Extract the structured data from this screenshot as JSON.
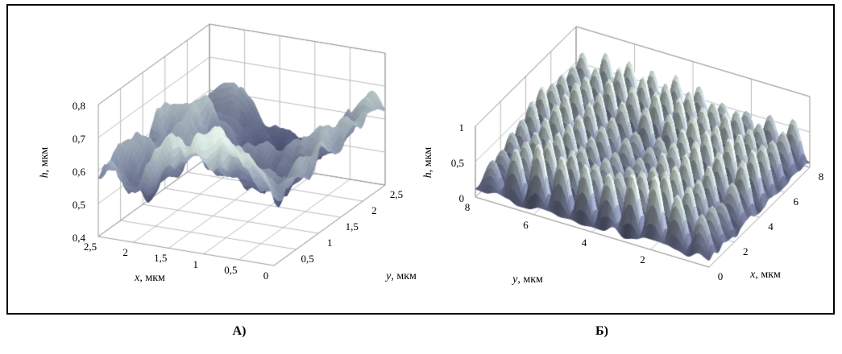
{
  "figure": {
    "panel_labels": [
      "А)",
      "Б)"
    ],
    "frame_border_color": "#000000",
    "background_color": "#ffffff"
  },
  "chart_data": [
    {
      "type": "surface",
      "panel_label": "А)",
      "axes": {
        "bottom_left": {
          "var": "x",
          "unit": ", мкм",
          "range": [
            0,
            2.5
          ],
          "ticks": [
            {
              "f": 1,
              "label": "2,5"
            },
            {
              "f": 0.8,
              "label": "2"
            },
            {
              "f": 0.6,
              "label": "1,5"
            },
            {
              "f": 0.4,
              "label": "1"
            },
            {
              "f": 0.2,
              "label": "0,5"
            },
            {
              "f": 0,
              "label": "0"
            }
          ]
        },
        "bottom_right": {
          "var": "y",
          "unit": ", мкм",
          "range": [
            0,
            2.5
          ],
          "ticks": [
            {
              "f": 0.2,
              "label": "0,5"
            },
            {
              "f": 0.4,
              "label": "1"
            },
            {
              "f": 0.6,
              "label": "1,5"
            },
            {
              "f": 0.8,
              "label": "2"
            },
            {
              "f": 1,
              "label": "2,5"
            }
          ]
        },
        "vertical": {
          "var": "h",
          "unit": ", мкм",
          "range": [
            0.4,
            0.8
          ],
          "ticks": [
            {
              "f": 0,
              "label": "0,4"
            },
            {
              "f": 0.25,
              "label": "0,5"
            },
            {
              "f": 0.5,
              "label": "0,6"
            },
            {
              "f": 0.75,
              "label": "0,7"
            },
            {
              "f": 1,
              "label": "0,8"
            }
          ]
        }
      },
      "surface": {
        "kind": "fbm",
        "seed": 11,
        "octaves": 5,
        "base_freq": 2.4,
        "fine_amp": 0.12,
        "grid_n": 72,
        "z_lo": 0.03,
        "z_hi": 0.98
      },
      "colormap": [
        "#32354a",
        "#565c7c",
        "#8c97ab",
        "#c2d1cd",
        "#e9f3ec"
      ],
      "grid_color": "#bababa",
      "box_color": "#9a9a9a"
    },
    {
      "type": "surface",
      "panel_label": "Б)",
      "axes": {
        "bottom_left": {
          "var": "y",
          "unit": ", мкм",
          "range": [
            0,
            8
          ],
          "ticks": [
            {
              "f": 1,
              "label": "8"
            },
            {
              "f": 0.75,
              "label": "6"
            },
            {
              "f": 0.5,
              "label": "4"
            },
            {
              "f": 0.25,
              "label": "2"
            }
          ]
        },
        "bottom_right": {
          "var": "x",
          "unit": ", мкм",
          "range": [
            0,
            8
          ],
          "ticks": [
            {
              "f": 0,
              "label": "0"
            },
            {
              "f": 0.25,
              "label": "2"
            },
            {
              "f": 0.5,
              "label": "4"
            },
            {
              "f": 0.75,
              "label": "6"
            },
            {
              "f": 1,
              "label": "8"
            }
          ]
        },
        "vertical": {
          "var": "h",
          "unit": ", мкм",
          "range": [
            0,
            1
          ],
          "ticks": [
            {
              "f": 0,
              "label": "0"
            },
            {
              "f": 0.5,
              "label": "0,5"
            },
            {
              "f": 1,
              "label": "1"
            }
          ]
        }
      },
      "surface": {
        "kind": "bumps",
        "seed": 23,
        "bump_freq": 10,
        "noise_amp": 0.12,
        "grid_n": 96,
        "z_lo": 0.05,
        "z_hi": 0.97
      },
      "colormap": [
        "#454a63",
        "#767d9a",
        "#a7b3ba",
        "#d3e0d8",
        "#f1f7f1"
      ],
      "grid_color": "#bababa",
      "box_color": "#9a9a9a"
    }
  ]
}
